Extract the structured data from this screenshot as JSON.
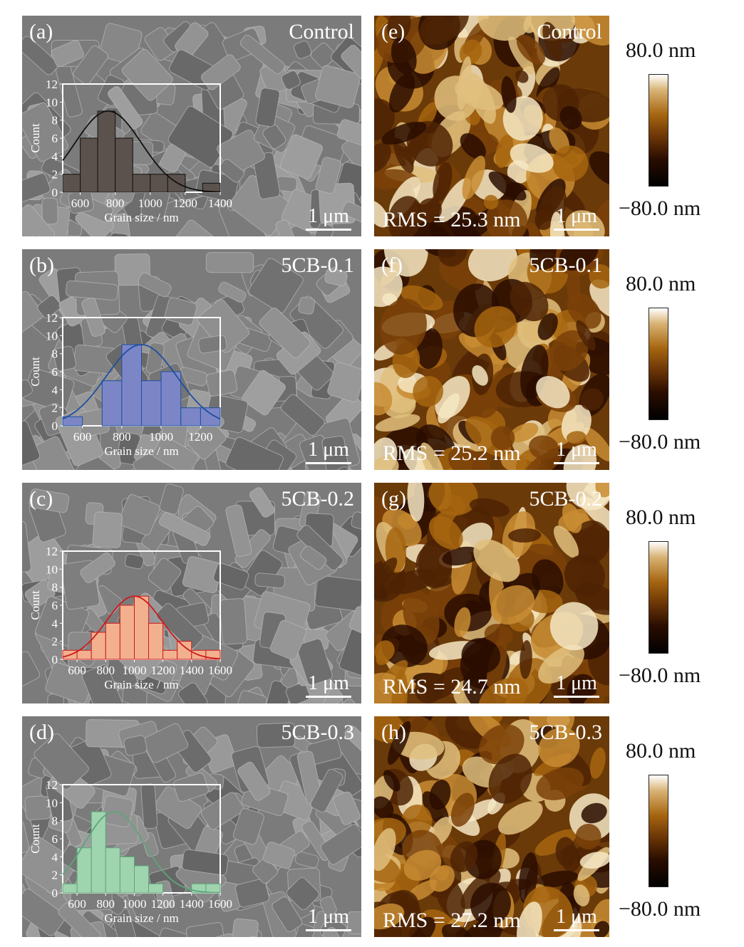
{
  "colorbar": {
    "max_label": "80.0 nm",
    "min_label": "−80.0 nm",
    "gradient": [
      "#ffffff",
      "#d8b273",
      "#a6650f",
      "#6a3506",
      "#2a0d00",
      "#000000"
    ]
  },
  "scale_bar_label": "1 μm",
  "sem_panels": [
    {
      "label": "(a)",
      "sample": "Control"
    },
    {
      "label": "(b)",
      "sample": "5CB-0.1"
    },
    {
      "label": "(c)",
      "sample": "5CB-0.2"
    },
    {
      "label": "(d)",
      "sample": "5CB-0.3"
    }
  ],
  "afm_panels": [
    {
      "label": "(e)",
      "sample": "Control",
      "rms": "RMS = 25.3 nm"
    },
    {
      "label": "(f)",
      "sample": "5CB-0.1",
      "rms": "RMS = 25.2 nm"
    },
    {
      "label": "(g)",
      "sample": "5CB-0.2",
      "rms": "RMS = 24.7 nm"
    },
    {
      "label": "(h)",
      "sample": "5CB-0.3",
      "rms": "RMS = 27.2 nm"
    }
  ],
  "chart_data": [
    {
      "type": "bar",
      "panel": "(a)",
      "xlabel": "Grain size / nm",
      "ylabel": "Count",
      "xlim": [
        500,
        1400
      ],
      "ylim": [
        0,
        12
      ],
      "bin_width": 100,
      "bins": [
        500,
        600,
        700,
        800,
        900,
        1000,
        1100,
        1200,
        1300
      ],
      "values": [
        2,
        6,
        9,
        6,
        2,
        2,
        2,
        0,
        1
      ],
      "xticks": [
        "600",
        "800",
        "1000",
        "1200",
        "1400"
      ],
      "yticks": [
        "0",
        "2",
        "4",
        "6",
        "8",
        "10",
        "12"
      ],
      "fit": {
        "mean": 760,
        "sigma": 190,
        "peak": 9
      },
      "bar_color": "#5c524d",
      "line_color": "#111111"
    },
    {
      "type": "bar",
      "panel": "(b)",
      "xlabel": "Grain size / nm",
      "ylabel": "Count",
      "xlim": [
        500,
        1300
      ],
      "ylim": [
        0,
        12
      ],
      "bin_width": 100,
      "bins": [
        500,
        700,
        800,
        900,
        1000,
        1100,
        1200
      ],
      "values": [
        1,
        5,
        9,
        5,
        6,
        2,
        2
      ],
      "xticks": [
        "600",
        "800",
        "1000",
        "1200"
      ],
      "yticks": [
        "0",
        "2",
        "4",
        "6",
        "8",
        "10",
        "12"
      ],
      "fit": {
        "mean": 900,
        "sigma": 180,
        "peak": 9
      },
      "bar_color": "#7c86c6",
      "line_color": "#1f4fa0"
    },
    {
      "type": "bar",
      "panel": "(c)",
      "xlabel": "Grain size / nm",
      "ylabel": "Count",
      "xlim": [
        500,
        1600
      ],
      "ylim": [
        0,
        12
      ],
      "bin_width": 100,
      "bins": [
        500,
        600,
        700,
        800,
        900,
        1000,
        1100,
        1200,
        1300,
        1400,
        1500
      ],
      "values": [
        1,
        1,
        3,
        4,
        6,
        7,
        4,
        1,
        2,
        1,
        1
      ],
      "xticks": [
        "600",
        "800",
        "1000",
        "1200",
        "1400",
        "1600"
      ],
      "yticks": [
        "0",
        "2",
        "4",
        "6",
        "8",
        "10",
        "12"
      ],
      "fit": {
        "mean": 1000,
        "sigma": 195,
        "peak": 7
      },
      "bar_color": "#f2b08e",
      "line_color": "#cc1b1b"
    },
    {
      "type": "bar",
      "panel": "(d)",
      "xlabel": "Grain size / nm",
      "ylabel": "Count",
      "xlim": [
        500,
        1600
      ],
      "ylim": [
        0,
        12
      ],
      "bin_width": 100,
      "bins": [
        500,
        600,
        700,
        800,
        900,
        1000,
        1100,
        1200,
        1300,
        1400,
        1500
      ],
      "values": [
        1,
        5,
        9,
        5,
        4,
        3,
        1,
        0,
        0,
        1,
        1
      ],
      "xticks": [
        "600",
        "800",
        "1000",
        "1200",
        "1400",
        "1600"
      ],
      "yticks": [
        "0",
        "2",
        "4",
        "6",
        "8",
        "10",
        "12"
      ],
      "fit": {
        "mean": 860,
        "sigma": 210,
        "peak": 9
      },
      "bar_color": "#9fd4ae",
      "line_color": "#5ea57a"
    }
  ]
}
